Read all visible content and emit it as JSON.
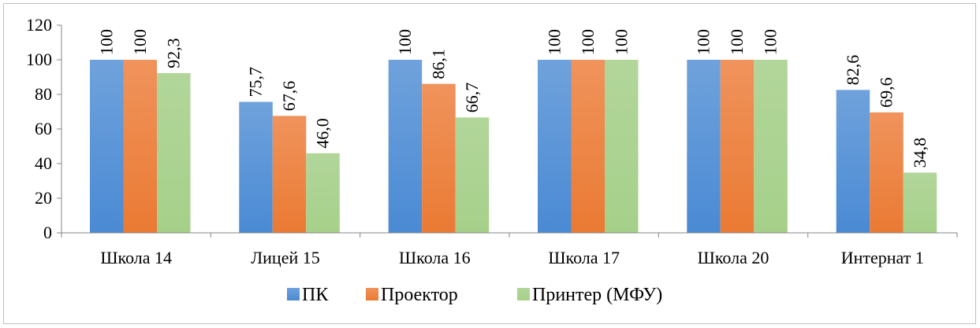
{
  "chart_data": {
    "type": "bar",
    "title": "",
    "xlabel": "",
    "ylabel": "",
    "ylim": [
      0,
      120
    ],
    "yticks": [
      0,
      20,
      40,
      60,
      80,
      100,
      120
    ],
    "grid": false,
    "legend_position": "bottom",
    "categories": [
      "Школа 14",
      "Лицей 15",
      "Школа 16",
      "Школа 17",
      "Школа 20",
      "Интернат 1"
    ],
    "series": [
      {
        "name": "ПК",
        "color": "#4a8ad4",
        "color_light": "#6fa2dc",
        "values": [
          100,
          75.7,
          100,
          100,
          100,
          82.6
        ],
        "labels": [
          "100",
          "75,7",
          "100",
          "100",
          "100",
          "82,6"
        ]
      },
      {
        "name": "Проектор",
        "color": "#ea7a33",
        "color_light": "#f0935c",
        "values": [
          100,
          67.6,
          86.1,
          100,
          100,
          69.6
        ],
        "labels": [
          "100",
          "67,6",
          "86,1",
          "100",
          "100",
          "69,6"
        ]
      },
      {
        "name": "Принтер (МФУ)",
        "color": "#a6d08a",
        "color_light": "#b2d69a",
        "values": [
          92.3,
          46.0,
          66.7,
          100,
          100,
          34.8
        ],
        "labels": [
          "92,3",
          "46,0",
          "66,7",
          "100",
          "100",
          "34,8"
        ]
      }
    ]
  }
}
